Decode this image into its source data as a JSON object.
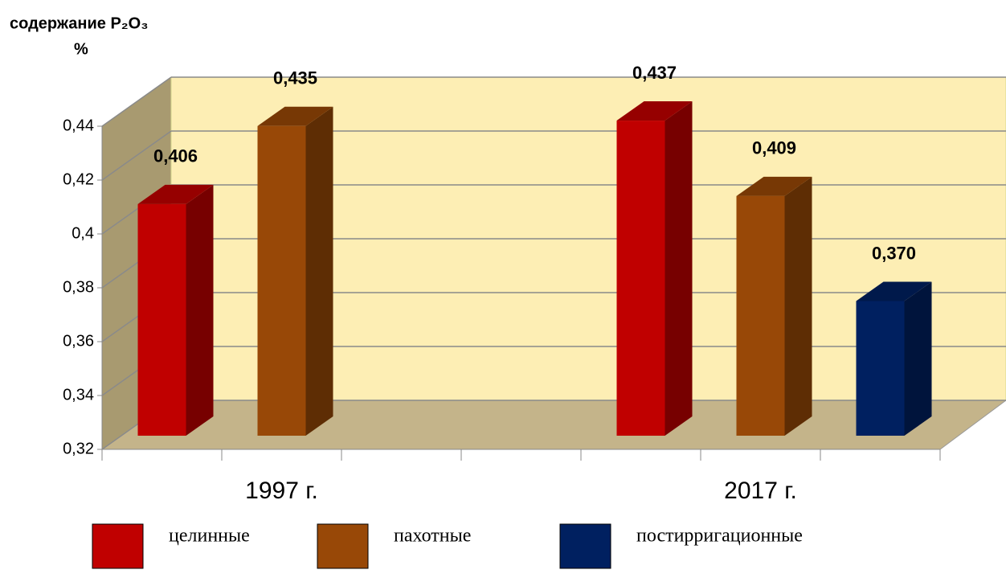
{
  "chart_data": {
    "type": "bar3d",
    "title": "содержание P₂O₃",
    "y_label": "%",
    "categories": [
      "1997 г.",
      "2017 г."
    ],
    "series": [
      {
        "name": "целинные",
        "color": "#c00000",
        "values": [
          0.406,
          0.437
        ],
        "value_labels": [
          "0,406",
          "0,437"
        ]
      },
      {
        "name": "пахотные",
        "color": "#984807",
        "values": [
          0.435,
          0.409
        ],
        "value_labels": [
          "0,435",
          "0,409"
        ]
      },
      {
        "name": "постирригационные",
        "color": "#002060",
        "values": [
          null,
          0.37
        ],
        "value_labels": [
          null,
          "0,370"
        ]
      }
    ],
    "ylim": [
      0.32,
      0.44
    ],
    "yticks": [
      {
        "value": 0.32,
        "label": "0,32"
      },
      {
        "value": 0.34,
        "label": "0,34"
      },
      {
        "value": 0.36,
        "label": "0,36"
      },
      {
        "value": 0.38,
        "label": "0,38"
      },
      {
        "value": 0.4,
        "label": "0,4"
      },
      {
        "value": 0.42,
        "label": "0,42"
      },
      {
        "value": 0.44,
        "label": "0,44"
      }
    ],
    "grid": true
  }
}
